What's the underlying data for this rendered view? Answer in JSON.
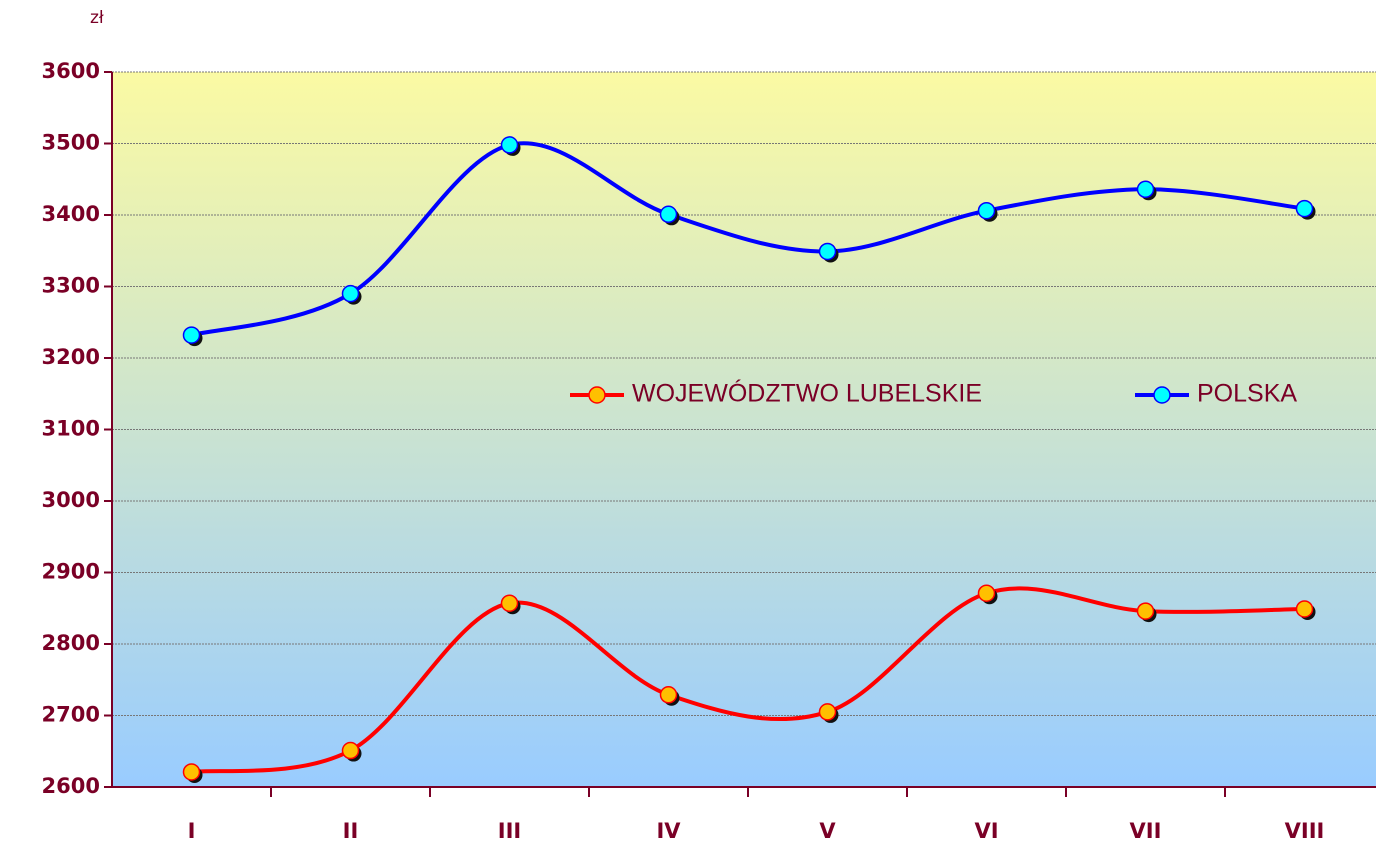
{
  "chart_data": {
    "type": "line",
    "y_label": "zł",
    "categories": [
      "I",
      "II",
      "III",
      "IV",
      "V",
      "VI",
      "VII",
      "VIII"
    ],
    "series": [
      {
        "name": "WOJEWÓDZTWO LUBELSKIE",
        "color": "#ff0000",
        "marker_color": "#ffc000",
        "values": [
          2621,
          2651,
          2857,
          2729,
          2705,
          2871,
          2846,
          2849
        ]
      },
      {
        "name": "POLSKA",
        "color": "#0000ff",
        "marker_color": "#00ffff",
        "values": [
          3232,
          3290,
          3498,
          3401,
          3349,
          3406,
          3436,
          3409
        ]
      }
    ],
    "ylim": [
      2600,
      3600
    ],
    "yticks": [
      2600,
      2700,
      2800,
      2900,
      3000,
      3100,
      3200,
      3300,
      3400,
      3500,
      3600
    ],
    "grid": true,
    "smooth": true
  }
}
